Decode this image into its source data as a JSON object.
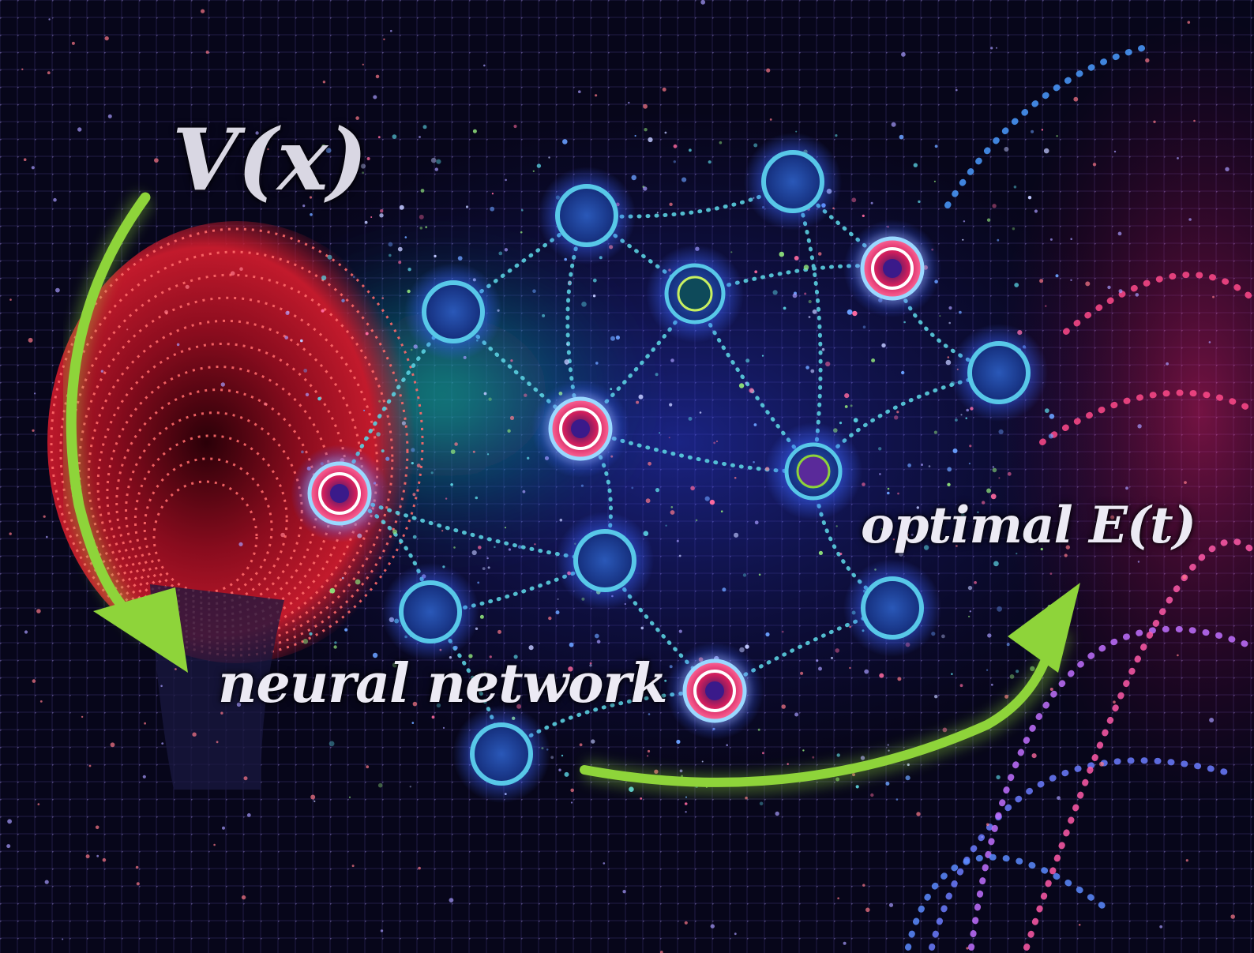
{
  "labels": {
    "potential": "V(x)",
    "network": "neural network",
    "output": "optimal E(t)"
  },
  "colors": {
    "background": "#05040d",
    "arrow": "#8ed43a",
    "node_fill": "#1b3f8f",
    "node_ring": "#58c8e8",
    "highlight_node": "#ff2d6e",
    "funnel": "#c4102c",
    "connection": "#5ad0e0"
  },
  "icons": [
    "arrow-down-icon",
    "arrow-up-right-icon",
    "neural-node-icon",
    "potential-well-icon"
  ]
}
